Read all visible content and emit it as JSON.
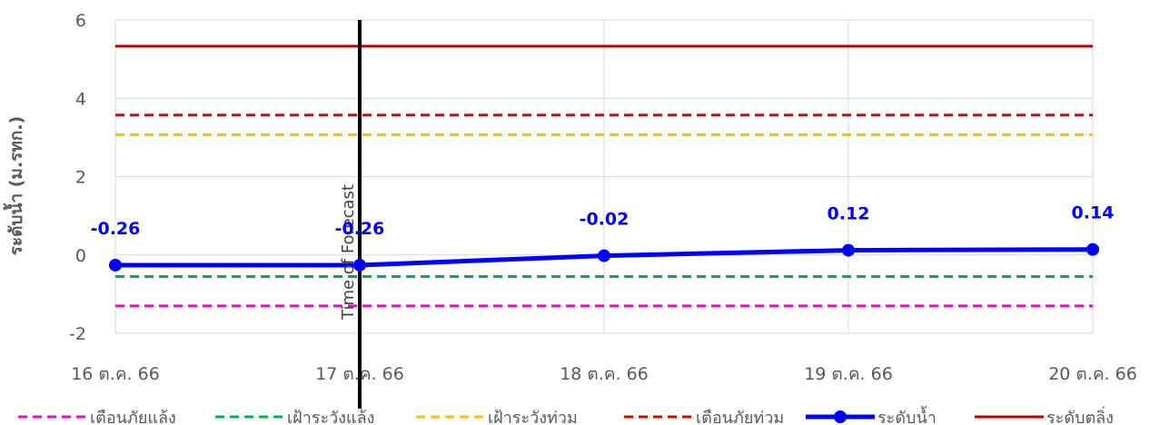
{
  "chart_data": {
    "type": "line",
    "ylabel": "ระดับน้ำ (ม.รทก.)",
    "ylim": [
      -2,
      6
    ],
    "yticks": [
      -2,
      0,
      2,
      4,
      6
    ],
    "grid": true,
    "legend_position": "bottom",
    "categories": [
      "16 ต.ค. 66",
      "17 ต.ค. 66",
      "18 ต.ค. 66",
      "19 ต.ค. 66",
      "20 ต.ค. 66"
    ],
    "forecast_marker": {
      "label": "Time of Forecast",
      "category": "17 ต.ค. 66"
    },
    "series": [
      {
        "name": "เตือนภัยแล้ง",
        "style": "dashed",
        "color": "#ff00cc",
        "values": [
          -1.3,
          -1.3,
          -1.3,
          -1.3,
          -1.3
        ]
      },
      {
        "name": "เฝ้าระวังแล้ง",
        "style": "dashed",
        "color": "#00b050",
        "values": [
          -0.55,
          -0.55,
          -0.55,
          -0.55,
          -0.55
        ]
      },
      {
        "name": "เฝ้าระวังท่วม",
        "style": "dashed",
        "color": "#ffc000",
        "values": [
          3.07,
          3.07,
          3.07,
          3.07,
          3.07
        ]
      },
      {
        "name": "เตือนภัยท่วม",
        "style": "dashed",
        "color": "#e00000",
        "values": [
          3.57,
          3.57,
          3.57,
          3.57,
          3.57
        ]
      },
      {
        "name": "ระดับน้ำ",
        "style": "solid-marker",
        "color": "#0000ff",
        "values": [
          -0.26,
          -0.26,
          -0.02,
          0.12,
          0.14
        ],
        "data_labels": [
          "-0.26",
          "-0.26",
          "-0.02",
          "0.12",
          "0.14"
        ]
      },
      {
        "name": "ระดับตลิ่ง",
        "style": "solid",
        "color": "#c00000",
        "values": [
          5.33,
          5.33,
          5.33,
          5.33,
          5.33
        ]
      }
    ]
  }
}
